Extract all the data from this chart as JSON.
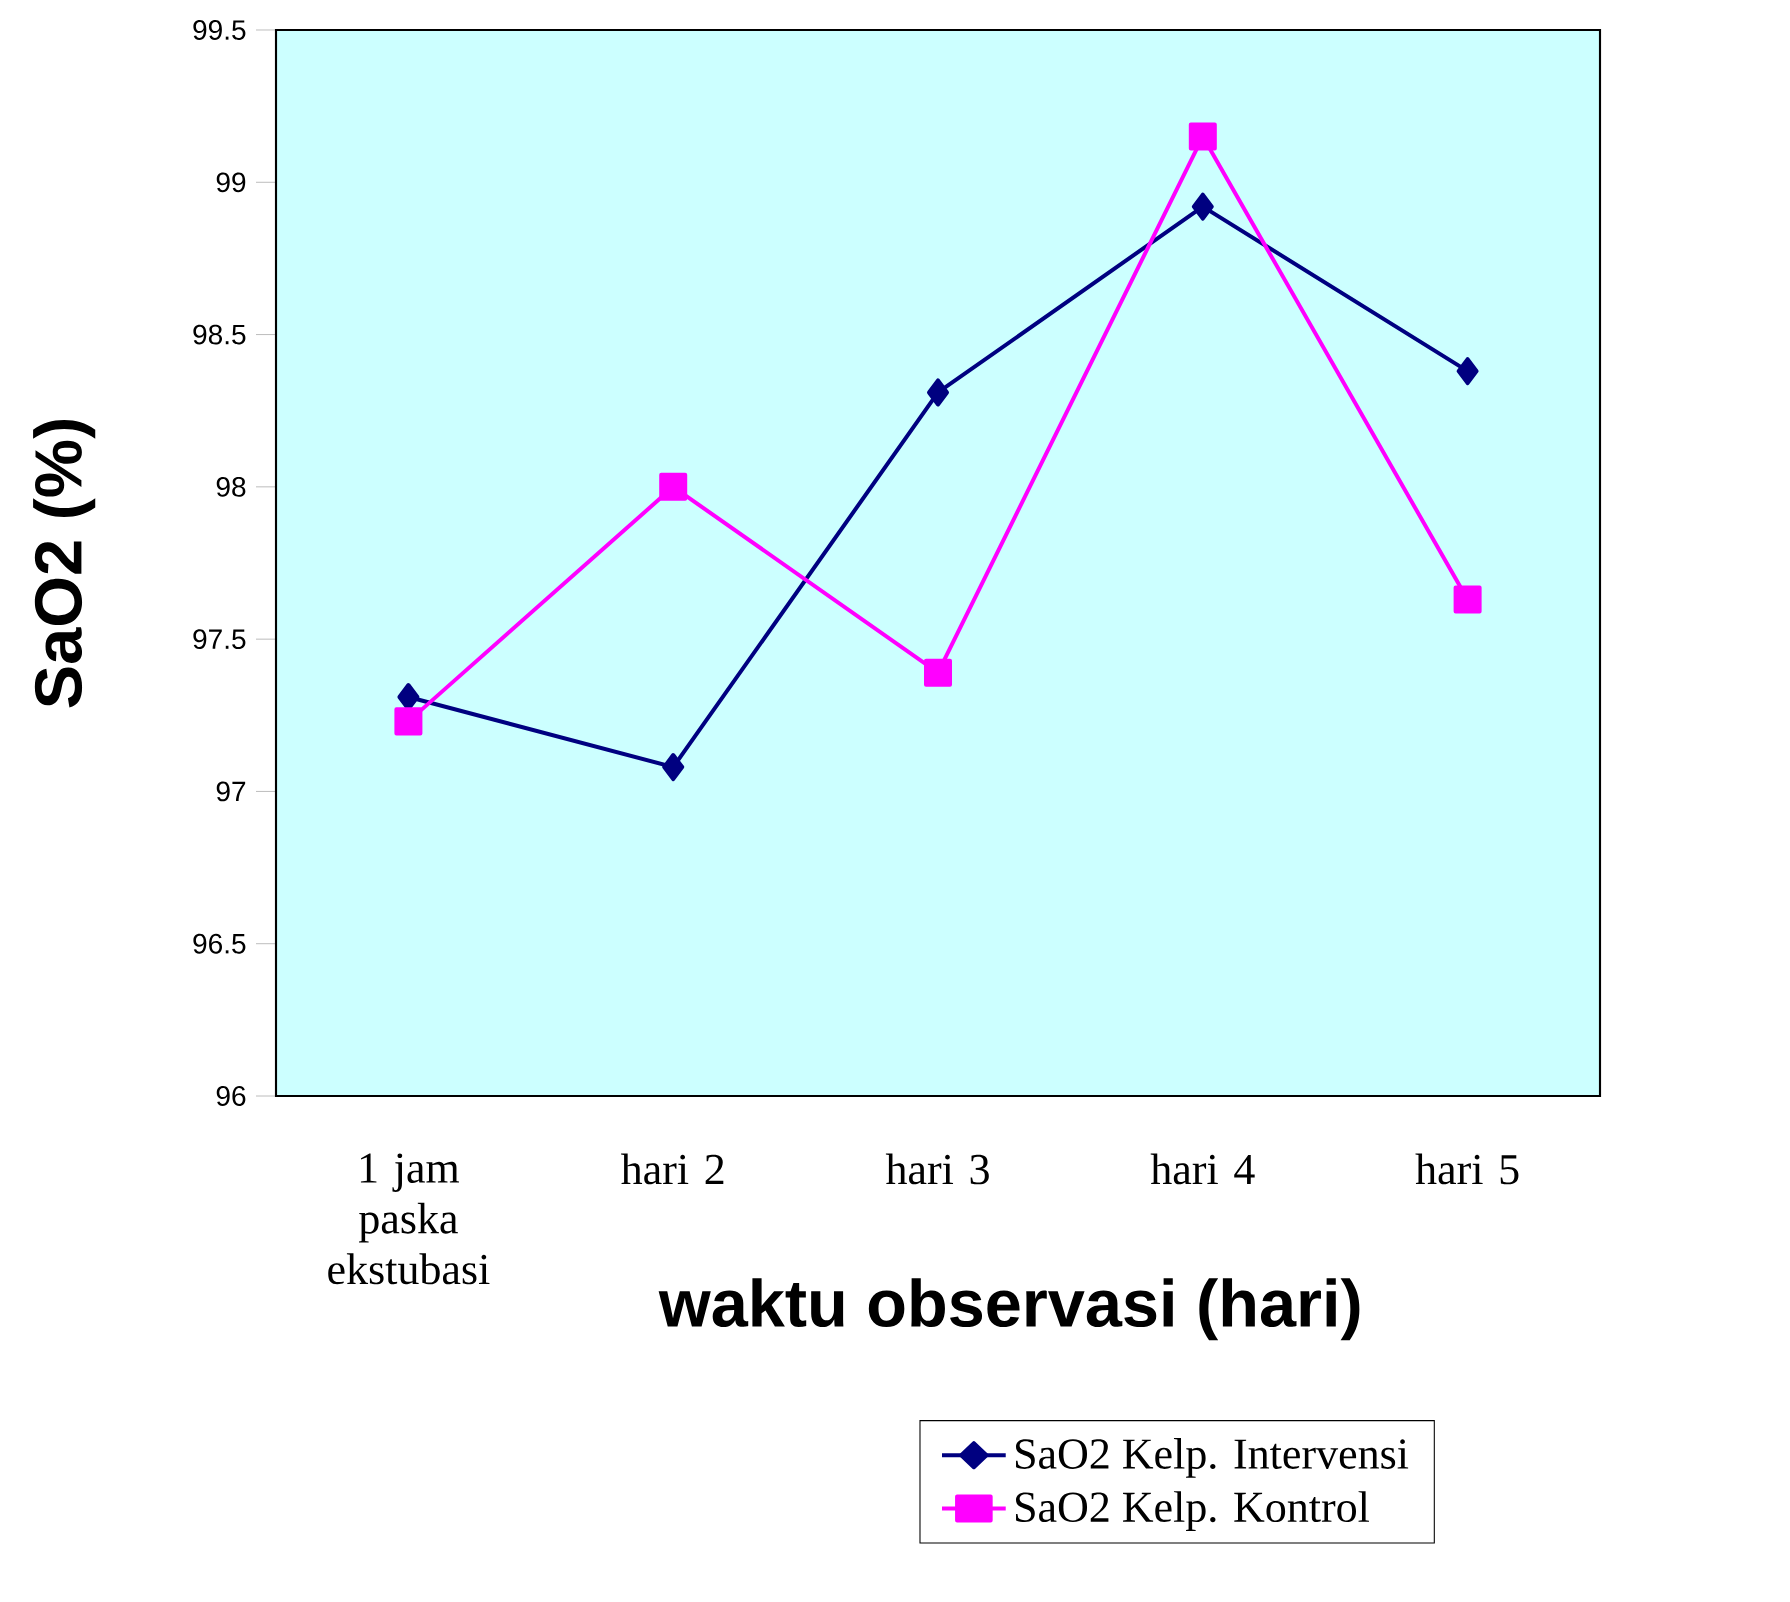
{
  "chart_data": {
    "type": "line",
    "xlabel": "waktu observasi (hari)",
    "ylabel": "SaO2 (%)",
    "categories": [
      "1 jam paska ekstubasi",
      "hari 2",
      "hari 3",
      "hari 4",
      "hari 5"
    ],
    "series": [
      {
        "name": "SaO2 Kelp. Intervensi",
        "color": "#000080",
        "marker": "diamond",
        "values": [
          97.31,
          97.08,
          98.31,
          98.92,
          98.38
        ]
      },
      {
        "name": "SaO2 Kelp. Kontrol",
        "color": "#ff00ff",
        "marker": "square",
        "values": [
          97.23,
          98.0,
          97.39,
          99.15,
          97.63
        ]
      }
    ],
    "ylim": [
      96,
      99.5
    ],
    "yticks": [
      96,
      96.5,
      97,
      97.5,
      98,
      98.5,
      99,
      99.5
    ],
    "grid": false,
    "legend": "bottom right",
    "line_style": "solid"
  }
}
